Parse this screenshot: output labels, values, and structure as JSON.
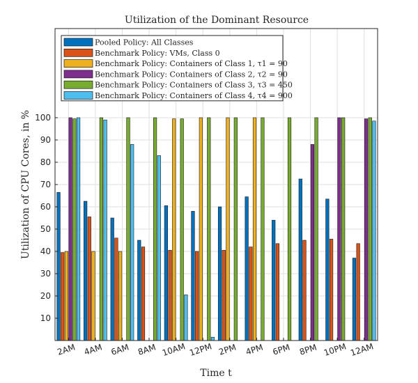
{
  "chart_data": {
    "type": "bar",
    "title": "Utilization of the Dominant Resource",
    "xlabel": "Time t",
    "ylabel": "Utilization of CPU Cores, in %",
    "ylim": [
      0,
      140
    ],
    "yticks": [
      10,
      20,
      30,
      40,
      50,
      60,
      70,
      80,
      90,
      100
    ],
    "grid": true,
    "legend_position": "top-left",
    "categories": [
      "2AM",
      "4AM",
      "6AM",
      "8AM",
      "10AM",
      "12PM",
      "2PM",
      "4PM",
      "6PM",
      "8PM",
      "10PM",
      "12AM"
    ],
    "series": [
      {
        "name": "Pooled Policy: All Classes",
        "color": "#0072BD",
        "values": [
          66.5,
          62.5,
          55,
          45,
          60.5,
          58,
          60,
          64.5,
          54,
          72.5,
          63.5,
          37
        ]
      },
      {
        "name": "Benchmark Policy: VMs, Class 0",
        "color": "#D95319",
        "values": [
          39.5,
          55.5,
          46,
          42,
          40.5,
          40,
          40.5,
          42,
          43.5,
          45,
          45.5,
          43.5
        ]
      },
      {
        "name": "Benchmark Policy: Containers of Class 1, τ1 = 90",
        "color": "#EDB120",
        "values": [
          40,
          40,
          40,
          0,
          99.5,
          100,
          100,
          100,
          0,
          0,
          0,
          0
        ]
      },
      {
        "name": "Benchmark Policy: Containers of Class 2, τ2 = 90",
        "color": "#7E2F8E",
        "values": [
          100,
          0,
          0,
          0,
          0,
          0,
          0,
          0,
          0,
          88,
          100,
          99.5
        ]
      },
      {
        "name": "Benchmark Policy: Containers of Class 3, τ3 = 450",
        "color": "#77AC30",
        "values": [
          99.5,
          100,
          100,
          100,
          99.5,
          100,
          100,
          100,
          100,
          100,
          100,
          100
        ]
      },
      {
        "name": "Benchmark Policy: Containers of Class 4, τ4 = 900",
        "color": "#4DBEEE",
        "values": [
          100,
          99,
          88,
          83,
          20.5,
          1.5,
          0,
          0,
          0,
          0,
          0,
          98.5
        ]
      }
    ]
  }
}
